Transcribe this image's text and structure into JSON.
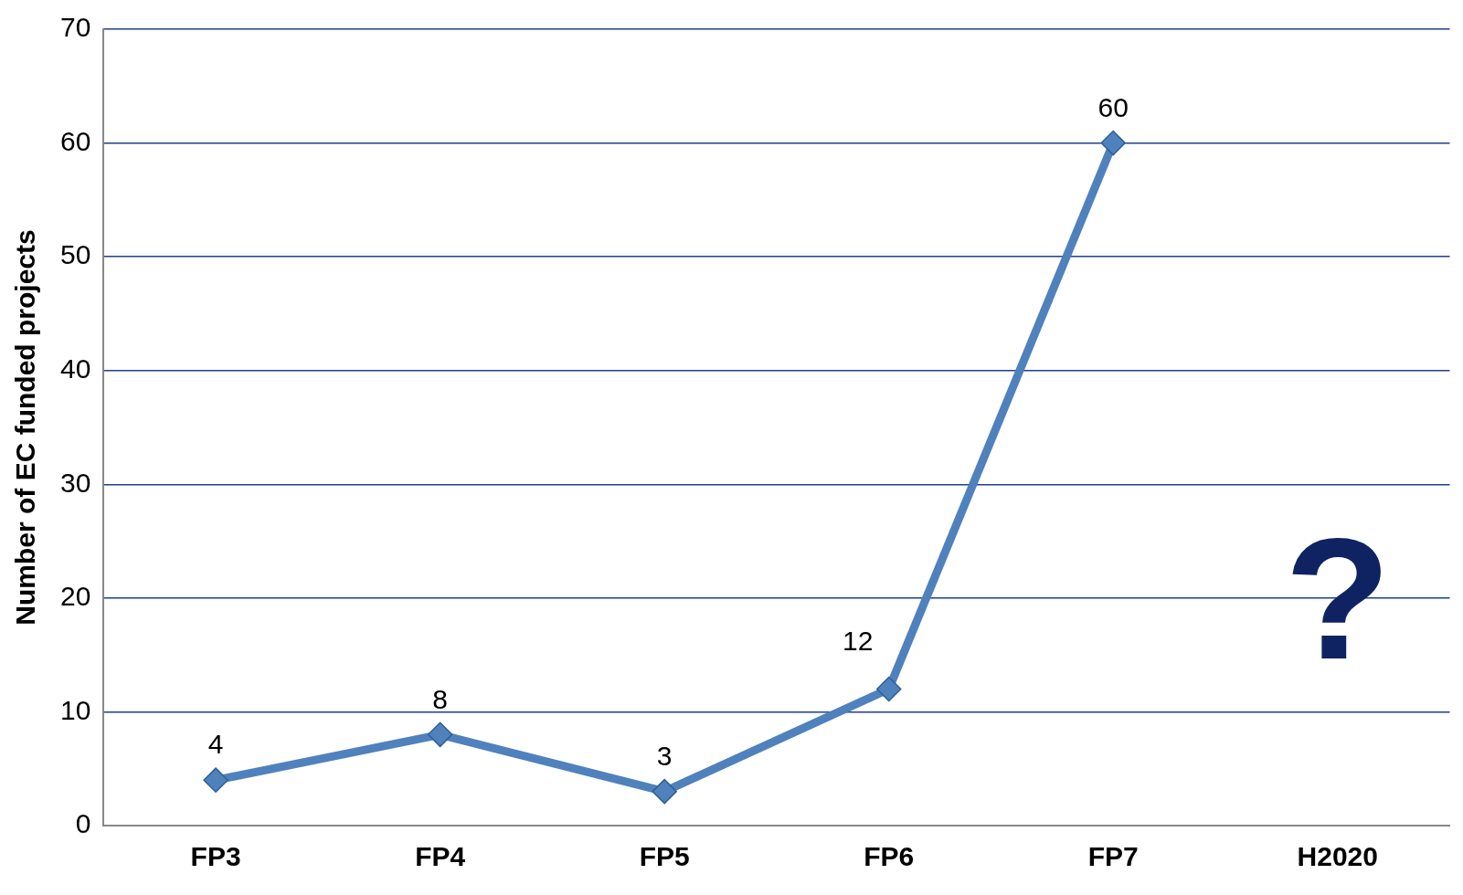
{
  "chart_data": {
    "type": "line",
    "ylabel": "Number of EC funded projects",
    "categories": [
      "FP3",
      "FP4",
      "FP5",
      "FP6",
      "FP7",
      "H2020"
    ],
    "series": [
      {
        "color": "#4f81bd",
        "values": [
          4,
          8,
          3,
          12,
          60,
          null
        ]
      }
    ],
    "ylim": [
      0,
      70
    ],
    "yticks": [
      0,
      10,
      20,
      30,
      40,
      50,
      60,
      70
    ],
    "grid": "y",
    "legend": false,
    "marker": "diamond",
    "line_style": "solid",
    "data_labels": true,
    "annotations": [
      "?"
    ]
  }
}
